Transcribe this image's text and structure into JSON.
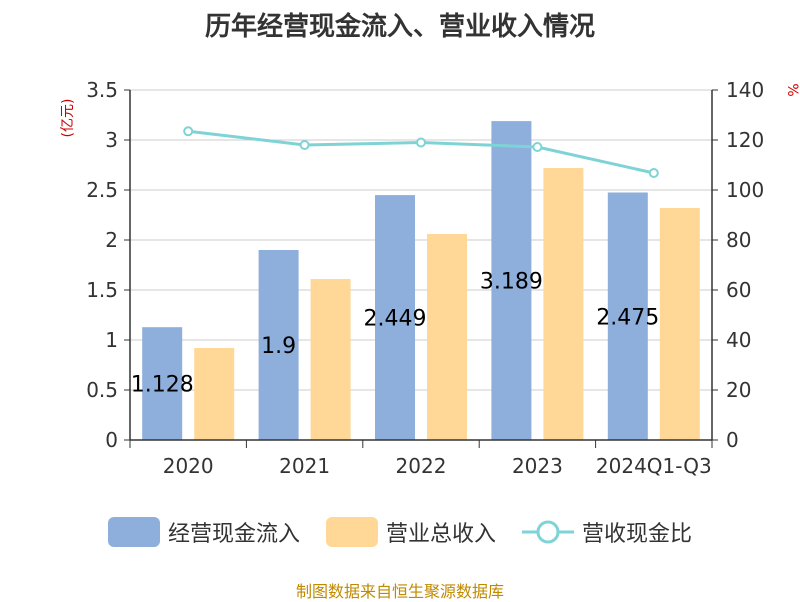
{
  "title": "历年经营现金流入、营业收入情况",
  "left_unit": "(亿元)",
  "right_unit": "%",
  "footer": "制图数据来自恒生聚源数据库",
  "colors": {
    "cash_inflow": "#8eaedb",
    "revenue": "#ffd898",
    "ratio": "#7ed3d6",
    "grid": "#cccccc",
    "axis": "#333333"
  },
  "chart_data": {
    "type": "bar",
    "title": "历年经营现金流入、营业收入情况",
    "categories": [
      "2020",
      "2021",
      "2022",
      "2023",
      "2024Q1-Q3"
    ],
    "y_left": {
      "min": 0,
      "max": 3.5,
      "ticks": [
        "0",
        "0.5",
        "1",
        "1.5",
        "2",
        "2.5",
        "3",
        "3.5"
      ],
      "label": "(亿元)"
    },
    "y_right": {
      "min": 0,
      "max": 140,
      "ticks": [
        "0",
        "20",
        "40",
        "60",
        "80",
        "100",
        "120",
        "140"
      ],
      "label": "%"
    },
    "series": [
      {
        "name": "经营现金流入",
        "type": "bar",
        "axis": "left",
        "values": [
          1.128,
          1.9,
          2.449,
          3.189,
          2.475
        ],
        "labels": [
          "1.128",
          "1.9",
          "2.449",
          "3.189",
          "2.475"
        ]
      },
      {
        "name": "营业总收入",
        "type": "bar",
        "axis": "left",
        "values": [
          0.92,
          1.61,
          2.06,
          2.72,
          2.32
        ]
      },
      {
        "name": "营收现金比",
        "type": "line",
        "axis": "right",
        "values": [
          123.5,
          118,
          119,
          117.2,
          106.8
        ]
      }
    ],
    "legend": [
      "经营现金流入",
      "营业总收入",
      "营收现金比"
    ]
  }
}
